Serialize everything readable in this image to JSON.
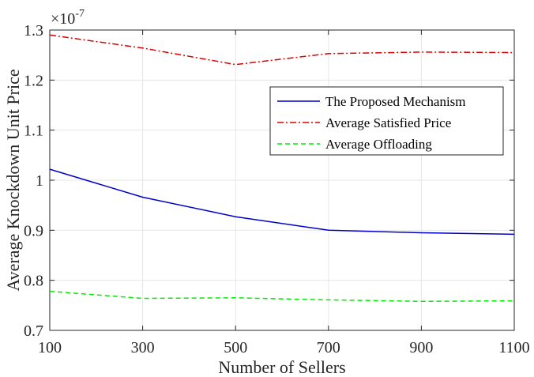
{
  "chart_data": {
    "type": "line",
    "xlabel": "Number of Sellers",
    "ylabel": "Average Knockdown Unit Price",
    "multiplier": {
      "base": "×10",
      "exponent": "-7"
    },
    "x": [
      100,
      300,
      500,
      700,
      900,
      1100
    ],
    "xticks": [
      "100",
      "300",
      "500",
      "700",
      "900",
      "1100"
    ],
    "yticks": [
      {
        "value": 0.7,
        "label": "0.7"
      },
      {
        "value": 0.8,
        "label": "0.8"
      },
      {
        "value": 0.9,
        "label": "0.9"
      },
      {
        "value": 1.0,
        "label": "1"
      },
      {
        "value": 1.1,
        "label": "1.1"
      },
      {
        "value": 1.2,
        "label": "1.2"
      },
      {
        "value": 1.3,
        "label": "1.3"
      }
    ],
    "xlim": [
      100,
      1100
    ],
    "ylim": [
      0.7,
      1.3
    ],
    "grid": true,
    "legend_position": "top-right",
    "series": [
      {
        "name": "The Proposed Mechanism",
        "color": "#0000cc",
        "dash": "solid",
        "values": [
          1.022,
          0.966,
          0.927,
          0.9,
          0.895,
          0.892
        ]
      },
      {
        "name": "Average Satisfied Price",
        "color": "#dd0000",
        "dash": "dashdot",
        "values": [
          1.29,
          1.264,
          1.231,
          1.253,
          1.256,
          1.255
        ]
      },
      {
        "name": "Average Offloading",
        "color": "#00ee00",
        "dash": "dashed",
        "values": [
          0.778,
          0.764,
          0.765,
          0.761,
          0.758,
          0.759
        ]
      }
    ]
  }
}
